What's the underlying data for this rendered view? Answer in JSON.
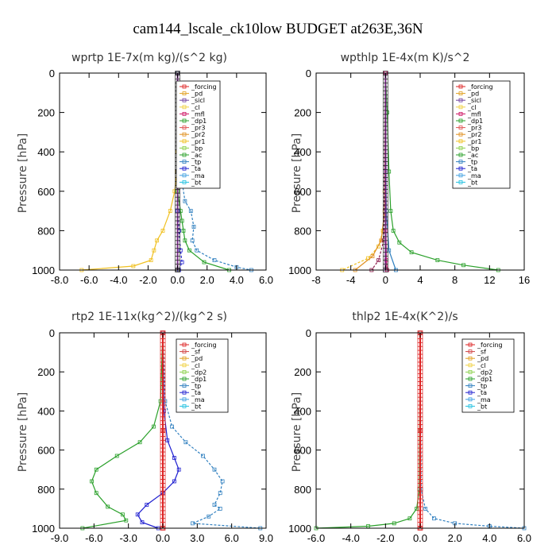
{
  "figure_title": "cam144_lscale_ck10low  BUDGET at263E,36N",
  "chart_data": [
    {
      "type": "line",
      "title": "wprtp  1E-7x(m kg)/(s^2 kg)",
      "ylabel": "Pressure [hPa]",
      "xlim": [
        -8,
        6
      ],
      "xticks": [
        -8,
        -6,
        -4,
        -2,
        0,
        2,
        4,
        6
      ],
      "xtick_labels": [
        "-8.0",
        "-6.0",
        "-4.0",
        "-2.0",
        "0.0",
        "2.0",
        "4.0",
        "6.0"
      ],
      "ylim": [
        0,
        1000
      ],
      "yticks": [
        0,
        200,
        400,
        600,
        800,
        1000
      ],
      "legend": [
        "_forcing",
        "_pd",
        "_sicl",
        "_cl",
        "_mfl",
        "_dp1",
        "_pr3",
        "_pr2",
        "_pr1",
        "_bp",
        "_ac",
        "_tp",
        "_ta",
        "_ma",
        "_bt"
      ],
      "series": [
        {
          "name": "_pr1",
          "color": "#f0c020",
          "x": [
            0,
            0,
            -0.05,
            -0.2,
            -0.5,
            -1.0,
            -1.4,
            -1.6,
            -1.8,
            -3.0,
            -6.5
          ],
          "y": [
            0,
            400,
            500,
            600,
            700,
            800,
            850,
            900,
            950,
            980,
            1000
          ]
        },
        {
          "name": "_tp",
          "color": "#2f7fbf",
          "x": [
            0,
            0.05,
            0.3,
            0.5,
            0.9,
            1.1,
            1.0,
            1.3,
            2.5,
            4.0,
            5.0
          ],
          "y": [
            0,
            450,
            550,
            650,
            700,
            780,
            850,
            900,
            950,
            985,
            1000
          ]
        },
        {
          "name": "_ac",
          "color": "#2aa02a",
          "x": [
            0,
            0,
            0.2,
            0.3,
            0.4,
            0.5,
            0.8,
            1.8,
            3.5
          ],
          "y": [
            0,
            600,
            700,
            750,
            800,
            850,
            900,
            960,
            1000
          ]
        },
        {
          "name": "_ta",
          "color": "#1f1fd0",
          "x": [
            0,
            0,
            0.1,
            0.2,
            0.3,
            0.1
          ],
          "y": [
            0,
            700,
            800,
            900,
            960,
            1000
          ]
        },
        {
          "name": "_forcing",
          "color": "#222222",
          "x": [
            0,
            0,
            0
          ],
          "y": [
            0,
            500,
            1000
          ]
        }
      ]
    },
    {
      "type": "line",
      "title": "wpthlp  1E-4x(m K)/s^2",
      "ylabel": "Pressure [hPa]",
      "xlim": [
        -8,
        16
      ],
      "xticks": [
        -8,
        -4,
        0,
        4,
        8,
        12,
        16
      ],
      "xtick_labels": [
        "-8",
        "-4",
        "0",
        "4",
        "8",
        "12",
        "16"
      ],
      "ylim": [
        0,
        1000
      ],
      "yticks": [
        0,
        200,
        400,
        600,
        800,
        1000
      ],
      "legend": [
        "_forcing",
        "_pd",
        "_sicl",
        "_cl",
        "_mfl",
        "_dp1",
        "_pr3",
        "_pr2",
        "_pr1",
        "_bp",
        "_ac",
        "_tp",
        "_ta",
        "_ma",
        "_bt"
      ],
      "series": [
        {
          "name": "_ac",
          "color": "#2aa02a",
          "x": [
            0,
            0.2,
            0.4,
            0.6,
            0.9,
            1.6,
            3.0,
            6.0,
            9.0,
            13.0
          ],
          "y": [
            0,
            200,
            500,
            700,
            800,
            860,
            910,
            950,
            975,
            1000
          ]
        },
        {
          "name": "_pr1",
          "color": "#f0c020",
          "x": [
            0,
            -0.1,
            -0.3,
            -0.8,
            -2.0,
            -5.0
          ],
          "y": [
            0,
            600,
            800,
            880,
            940,
            1000
          ]
        },
        {
          "name": "_pr2",
          "color": "#e09020",
          "x": [
            0,
            -0.1,
            -0.5,
            -1.5,
            -3.5
          ],
          "y": [
            0,
            700,
            850,
            930,
            1000
          ]
        },
        {
          "name": "_cl",
          "color": "#8b1a4a",
          "x": [
            0,
            -0.2,
            -0.8,
            -1.6
          ],
          "y": [
            0,
            850,
            950,
            1000
          ]
        },
        {
          "name": "_tp",
          "color": "#2f7fbf",
          "x": [
            0,
            0.1,
            0.4,
            1.2
          ],
          "y": [
            0,
            700,
            900,
            1000
          ]
        },
        {
          "name": "_pd",
          "color": "#c8a0e8",
          "x": [
            0,
            0,
            0
          ],
          "y": [
            0,
            500,
            1000
          ]
        },
        {
          "name": "_mfl",
          "color": "#cc1060",
          "x": [
            0,
            0.05,
            0.1,
            0.2
          ],
          "y": [
            0,
            800,
            950,
            1000
          ]
        }
      ]
    },
    {
      "type": "line",
      "title": "rtp2  1E-11x(kg^2)/(kg^2 s)",
      "ylabel": "Pressure [hPa]",
      "xlim": [
        -9,
        9
      ],
      "xticks": [
        -9,
        -6,
        -3,
        0,
        3,
        6,
        9
      ],
      "xtick_labels": [
        "-9.0",
        "-6.0",
        "-3.0",
        "0.0",
        "3.0",
        "6.0",
        "9.0"
      ],
      "ylim": [
        0,
        1000
      ],
      "yticks": [
        0,
        200,
        400,
        600,
        800,
        1000
      ],
      "legend": [
        "_forcing",
        "_sf",
        "_pd",
        "_cl",
        "_dp2",
        "_dp1",
        "_tp",
        "_ta",
        "_ma",
        "_bt"
      ],
      "series": [
        {
          "name": "_dp1",
          "color": "#2aa02a",
          "x": [
            0,
            -0.2,
            -0.8,
            -2.0,
            -4.0,
            -5.8,
            -6.2,
            -5.8,
            -4.8,
            -3.5,
            -3.2,
            -7.0
          ],
          "y": [
            0,
            350,
            480,
            560,
            630,
            700,
            760,
            820,
            890,
            930,
            960,
            1000
          ]
        },
        {
          "name": "_tp",
          "color": "#2f7fbf",
          "x": [
            0,
            0.2,
            0.8,
            2.0,
            3.5,
            4.5,
            5.2,
            5.0,
            4.5,
            5.0,
            4.0,
            2.6,
            8.5
          ],
          "y": [
            0,
            350,
            480,
            560,
            630,
            700,
            760,
            820,
            880,
            900,
            940,
            975,
            1000
          ]
        },
        {
          "name": "_ta",
          "color": "#1f1fd0",
          "x": [
            0,
            0.1,
            0.4,
            1.0,
            1.4,
            1.0,
            0,
            -1.4,
            -2.2,
            -1.8,
            -0.4
          ],
          "y": [
            0,
            400,
            550,
            640,
            700,
            760,
            820,
            880,
            930,
            970,
            1000
          ]
        },
        {
          "name": "_forcing",
          "color": "#dd2222",
          "x": [
            0,
            0,
            0
          ],
          "y": [
            0,
            500,
            1000
          ]
        }
      ]
    },
    {
      "type": "line",
      "title": "thlp2  1E-4x(K^2)/s",
      "ylabel": "Pressure [hPa]",
      "xlim": [
        -6,
        6
      ],
      "xticks": [
        -6,
        -4,
        -2,
        0,
        2,
        4,
        6
      ],
      "xtick_labels": [
        "-6.0",
        "-4.0",
        "-2.0",
        "0.0",
        "2.0",
        "4.0",
        "6.0"
      ],
      "ylim": [
        0,
        1000
      ],
      "yticks": [
        0,
        200,
        400,
        600,
        800,
        1000
      ],
      "legend": [
        "_forcing",
        "_sf",
        "_pd",
        "_cl",
        "_dp2",
        "_dp1",
        "_tp",
        "_ta",
        "_ma",
        "_bt"
      ],
      "series": [
        {
          "name": "_dp1",
          "color": "#2aa02a",
          "x": [
            0,
            -0.05,
            -0.2,
            -0.6,
            -1.5,
            -3.0,
            -6.0
          ],
          "y": [
            0,
            800,
            900,
            950,
            975,
            990,
            1000
          ]
        },
        {
          "name": "_tp",
          "color": "#2f7fbf",
          "x": [
            0,
            0.05,
            0.3,
            0.8,
            2.0,
            4.0,
            6.0
          ],
          "y": [
            0,
            800,
            900,
            950,
            975,
            990,
            1000
          ]
        },
        {
          "name": "_forcing",
          "color": "#dd2222",
          "x": [
            0,
            0,
            0
          ],
          "y": [
            0,
            500,
            1000
          ]
        }
      ]
    }
  ],
  "colors": {
    "frame": "#000000",
    "_forcing": "#dd2222",
    "_sf": "#d04040",
    "_pd": "#e0a020",
    "_cl": "#f0d040",
    "_dp2": "#8ad04a",
    "_dp1": "#2aa02a",
    "_tp": "#2f7fbf",
    "_ta": "#1f1fd0",
    "_ma": "#40a0e0",
    "_bt": "#20c0e0"
  }
}
